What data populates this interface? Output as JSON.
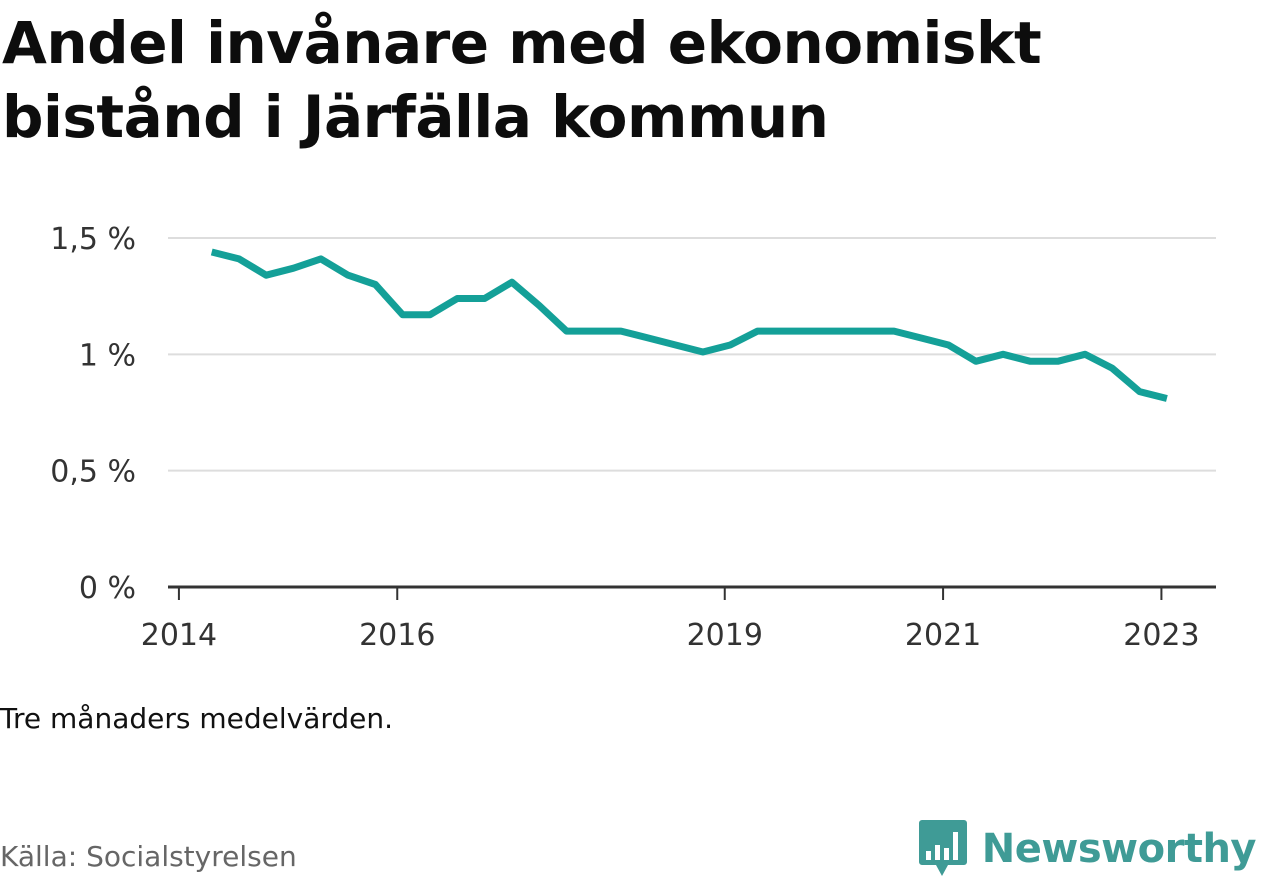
{
  "title": "Andel invånare med ekonomiskt bistånd i Järfälla kommun",
  "note": "Tre månaders medelvärden.",
  "source": "Källa: Socialstyrelsen",
  "brand": {
    "name": "Newsworthy",
    "color": "#3f9b96",
    "icon": "bar-chart-speech-bubble-icon"
  },
  "colors": {
    "line": "#14a098",
    "grid": "#dddddd",
    "axis": "#333333",
    "tick_text": "#333333"
  },
  "chart_data": {
    "type": "line",
    "title": "Andel invånare med ekonomiskt bistånd i Järfälla kommun",
    "xlabel": "",
    "ylabel": "",
    "xlim": [
      2013.9,
      2023.5
    ],
    "ylim": [
      0,
      1.5
    ],
    "x_ticks": [
      2014,
      2016,
      2019,
      2021,
      2023
    ],
    "x_tick_labels": [
      "2014",
      "2016",
      "2019",
      "2021",
      "2023"
    ],
    "y_ticks": [
      0,
      0.5,
      1,
      1.5
    ],
    "y_tick_labels": [
      "0 %",
      "0,5 %",
      "1 %",
      "1,5 %"
    ],
    "grid": true,
    "series": [
      {
        "x": [
          2014.3,
          2014.55,
          2014.8,
          2015.05,
          2015.3,
          2015.55,
          2015.8,
          2016.05,
          2016.3,
          2016.55,
          2016.8,
          2017.05,
          2017.3,
          2017.55,
          2017.8,
          2018.05,
          2018.3,
          2018.55,
          2018.8,
          2019.05,
          2019.3,
          2019.55,
          2019.8,
          2020.05,
          2020.3,
          2020.55,
          2020.8,
          2021.05,
          2021.3,
          2021.55,
          2021.8,
          2022.05,
          2022.3,
          2022.55,
          2022.8,
          2023.05
        ],
        "values": [
          1.44,
          1.41,
          1.34,
          1.37,
          1.41,
          1.34,
          1.3,
          1.17,
          1.17,
          1.24,
          1.24,
          1.31,
          1.21,
          1.1,
          1.1,
          1.1,
          1.07,
          1.04,
          1.01,
          1.04,
          1.1,
          1.1,
          1.1,
          1.1,
          1.1,
          1.1,
          1.07,
          1.04,
          0.97,
          1.0,
          0.97,
          0.97,
          1.0,
          0.94,
          0.84,
          0.81
        ]
      }
    ]
  }
}
